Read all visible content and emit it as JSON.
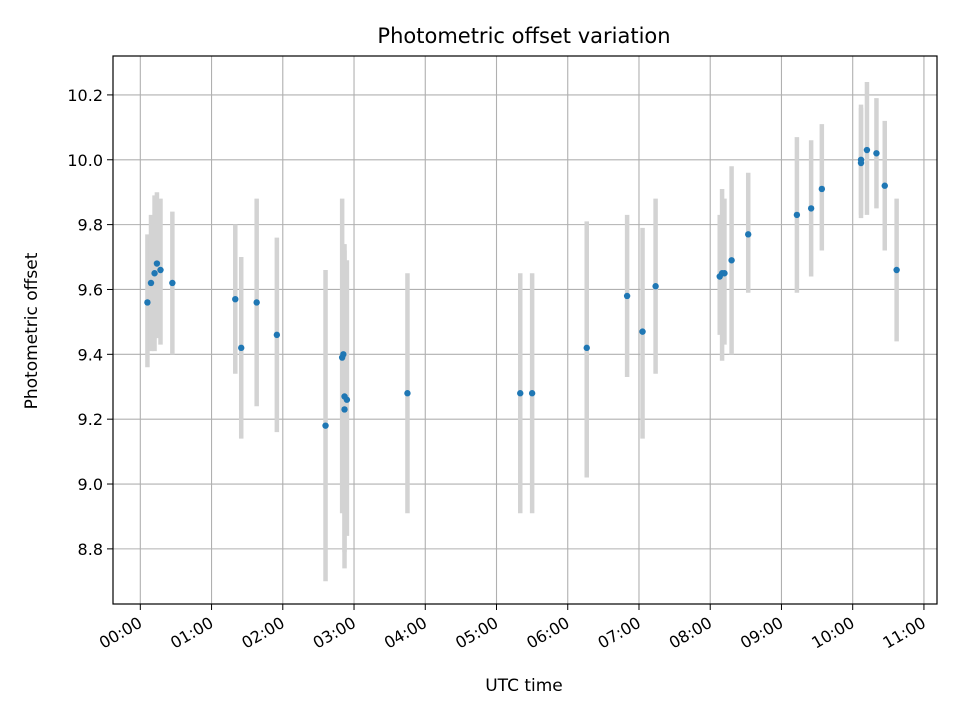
{
  "chart_data": {
    "type": "scatter",
    "title": "Photometric offset variation",
    "xlabel": "UTC time",
    "ylabel": "Photometric offset",
    "x_ticks": [
      "00:00",
      "01:00",
      "02:00",
      "03:00",
      "04:00",
      "05:00",
      "06:00",
      "07:00",
      "08:00",
      "09:00",
      "10:00",
      "11:00"
    ],
    "y_ticks": [
      "8.8",
      "9.0",
      "9.2",
      "9.4",
      "9.6",
      "9.8",
      "10.0",
      "10.2"
    ],
    "xlim": [
      "23:37",
      "11:11"
    ],
    "ylim": [
      8.63,
      10.32
    ],
    "grid": true,
    "point_color": "#1f77b4",
    "errorbar_color": "#d3d3d3",
    "series": [
      {
        "points": [
          {
            "x": "00:06",
            "y": 9.56,
            "ylow": 9.36,
            "yhigh": 9.77
          },
          {
            "x": "00:09",
            "y": 9.62,
            "ylow": 9.41,
            "yhigh": 9.83
          },
          {
            "x": "00:12",
            "y": 9.65,
            "ylow": 9.41,
            "yhigh": 9.89
          },
          {
            "x": "00:14",
            "y": 9.68,
            "ylow": 9.45,
            "yhigh": 9.9
          },
          {
            "x": "00:17",
            "y": 9.66,
            "ylow": 9.43,
            "yhigh": 9.88
          },
          {
            "x": "00:27",
            "y": 9.62,
            "ylow": 9.4,
            "yhigh": 9.84
          },
          {
            "x": "01:20",
            "y": 9.57,
            "ylow": 9.34,
            "yhigh": 9.8
          },
          {
            "x": "01:25",
            "y": 9.42,
            "ylow": 9.14,
            "yhigh": 9.7
          },
          {
            "x": "01:38",
            "y": 9.56,
            "ylow": 9.24,
            "yhigh": 9.88
          },
          {
            "x": "01:55",
            "y": 9.46,
            "ylow": 9.16,
            "yhigh": 9.76
          },
          {
            "x": "02:36",
            "y": 9.18,
            "ylow": 8.7,
            "yhigh": 9.66
          },
          {
            "x": "02:50",
            "y": 9.39,
            "ylow": 8.91,
            "yhigh": 9.88
          },
          {
            "x": "02:51",
            "y": 9.4,
            "ylow": 9.06,
            "yhigh": 9.74
          },
          {
            "x": "02:52",
            "y": 9.23,
            "ylow": 8.74,
            "yhigh": 9.72
          },
          {
            "x": "02:52",
            "y": 9.27,
            "ylow": 8.79,
            "yhigh": 9.74
          },
          {
            "x": "02:54",
            "y": 9.26,
            "ylow": 8.84,
            "yhigh": 9.69
          },
          {
            "x": "03:45",
            "y": 9.28,
            "ylow": 8.91,
            "yhigh": 9.65
          },
          {
            "x": "05:20",
            "y": 9.28,
            "ylow": 8.91,
            "yhigh": 9.65
          },
          {
            "x": "05:30",
            "y": 9.28,
            "ylow": 8.91,
            "yhigh": 9.65
          },
          {
            "x": "06:16",
            "y": 9.42,
            "ylow": 9.02,
            "yhigh": 9.81
          },
          {
            "x": "06:50",
            "y": 9.58,
            "ylow": 9.33,
            "yhigh": 9.83
          },
          {
            "x": "07:03",
            "y": 9.47,
            "ylow": 9.14,
            "yhigh": 9.79
          },
          {
            "x": "07:14",
            "y": 9.61,
            "ylow": 9.34,
            "yhigh": 9.88
          },
          {
            "x": "08:08",
            "y": 9.64,
            "ylow": 9.46,
            "yhigh": 9.83
          },
          {
            "x": "08:10",
            "y": 9.65,
            "ylow": 9.38,
            "yhigh": 9.91
          },
          {
            "x": "08:12",
            "y": 9.65,
            "ylow": 9.43,
            "yhigh": 9.88
          },
          {
            "x": "08:18",
            "y": 9.69,
            "ylow": 9.4,
            "yhigh": 9.98
          },
          {
            "x": "08:32",
            "y": 9.77,
            "ylow": 9.59,
            "yhigh": 9.96
          },
          {
            "x": "09:13",
            "y": 9.83,
            "ylow": 9.59,
            "yhigh": 10.07
          },
          {
            "x": "09:25",
            "y": 9.85,
            "ylow": 9.64,
            "yhigh": 10.06
          },
          {
            "x": "09:34",
            "y": 9.91,
            "ylow": 9.72,
            "yhigh": 10.11
          },
          {
            "x": "10:07",
            "y": 10.0,
            "ylow": 9.82,
            "yhigh": 10.17
          },
          {
            "x": "10:07",
            "y": 9.99,
            "ylow": 9.83,
            "yhigh": 10.16
          },
          {
            "x": "10:12",
            "y": 10.03,
            "ylow": 9.83,
            "yhigh": 10.24
          },
          {
            "x": "10:20",
            "y": 10.02,
            "ylow": 9.85,
            "yhigh": 10.19
          },
          {
            "x": "10:27",
            "y": 9.92,
            "ylow": 9.72,
            "yhigh": 10.12
          },
          {
            "x": "10:37",
            "y": 9.66,
            "ylow": 9.44,
            "yhigh": 9.88
          }
        ]
      }
    ]
  }
}
